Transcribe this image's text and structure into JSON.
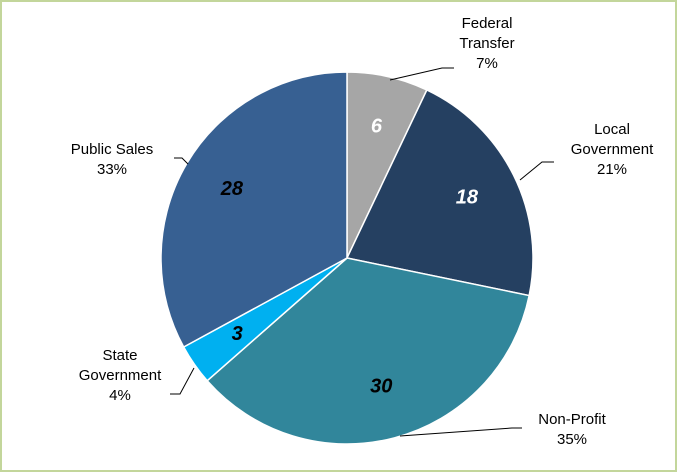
{
  "chart_data": {
    "type": "pie",
    "categories": [
      "Federal Transfer",
      "Local Government",
      "Non-Profit",
      "State Government",
      "Public Sales"
    ],
    "values": [
      6,
      18,
      30,
      3,
      28
    ],
    "percent_labels": [
      "7%",
      "21%",
      "35%",
      "4%",
      "33%"
    ],
    "colors": [
      "#a6a6a6",
      "#254061",
      "#31869b",
      "#00b0f0",
      "#376092"
    ],
    "label_colors": [
      "#ffffff",
      "#ffffff",
      "#000000",
      "#000000",
      "#000000"
    ]
  }
}
